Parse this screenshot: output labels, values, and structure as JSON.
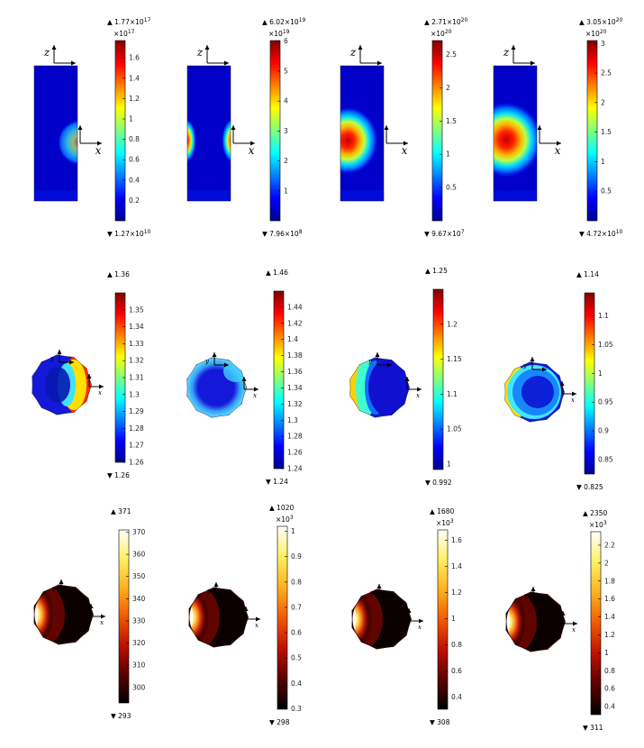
{
  "colormaps": {
    "jet": [
      "#00008f",
      "#0000ff",
      "#0080ff",
      "#00ffff",
      "#80ff80",
      "#ffff00",
      "#ff8000",
      "#ff0000",
      "#800000"
    ],
    "heat": [
      "#000000",
      "#5a0000",
      "#c01000",
      "#f05a00",
      "#ffb020",
      "#fff060",
      "#ffffff"
    ]
  },
  "panels": [
    {
      "id": "r1c1",
      "shape": "rect",
      "cmap": "jet",
      "axes": [
        "z",
        "x"
      ],
      "max": {
        "mantissa": "1.77",
        "exp": "17"
      },
      "min": {
        "mantissa": "1.27",
        "exp": "10"
      },
      "scale_exp": "17",
      "ticks": [
        "1.6",
        "1.4",
        "1.2",
        "1",
        "0.8",
        "0.6",
        "0.4",
        "0.2"
      ]
    },
    {
      "id": "r1c2",
      "shape": "rect",
      "cmap": "jet",
      "axes": [
        "z",
        "x"
      ],
      "max": {
        "mantissa": "6.02",
        "exp": "19"
      },
      "min": {
        "mantissa": "7.96",
        "exp": "8"
      },
      "scale_exp": "19",
      "ticks": [
        "6",
        "5",
        "4",
        "3",
        "2",
        "1"
      ]
    },
    {
      "id": "r1c3",
      "shape": "rect",
      "cmap": "jet",
      "axes": [
        "z",
        "x"
      ],
      "max": {
        "mantissa": "2.71",
        "exp": "20"
      },
      "min": {
        "mantissa": "9.67",
        "exp": "7"
      },
      "scale_exp": "20",
      "ticks": [
        "2.5",
        "2",
        "1.5",
        "1",
        "0.5"
      ]
    },
    {
      "id": "r1c4",
      "shape": "rect",
      "cmap": "jet",
      "axes": [
        "z",
        "x"
      ],
      "max": {
        "mantissa": "3.05",
        "exp": "20"
      },
      "min": {
        "mantissa": "4.72",
        "exp": "10"
      },
      "scale_exp": "20",
      "ticks": [
        "3",
        "2.5",
        "2",
        "1.5",
        "1",
        "0.5"
      ]
    },
    {
      "id": "r2c1",
      "shape": "disk",
      "cmap": "jet",
      "axes": [
        "y",
        "x"
      ],
      "max": {
        "mantissa": "1.36"
      },
      "min": {
        "mantissa": "1.26"
      },
      "ticks": [
        "1.35",
        "1.34",
        "1.33",
        "1.32",
        "1.31",
        "1.3",
        "1.29",
        "1.28",
        "1.27",
        "1.26"
      ]
    },
    {
      "id": "r2c2",
      "shape": "disk",
      "cmap": "jet",
      "axes": [
        "y",
        "x"
      ],
      "max": {
        "mantissa": "1.46"
      },
      "min": {
        "mantissa": "1.24"
      },
      "ticks": [
        "1.44",
        "1.42",
        "1.4",
        "1.38",
        "1.36",
        "1.34",
        "1.32",
        "1.3",
        "1.28",
        "1.26",
        "1.24"
      ]
    },
    {
      "id": "r2c3",
      "shape": "disk",
      "cmap": "jet",
      "axes": [
        "y",
        "x"
      ],
      "max": {
        "mantissa": "1.25"
      },
      "min": {
        "mantissa": "0.992"
      },
      "ticks": [
        "1.2",
        "1.15",
        "1.1",
        "1.05",
        "1"
      ]
    },
    {
      "id": "r2c4",
      "shape": "disk",
      "cmap": "jet",
      "axes": [
        "y",
        "x"
      ],
      "max": {
        "mantissa": "1.14"
      },
      "min": {
        "mantissa": "0.825"
      },
      "ticks": [
        "1.1",
        "1.05",
        "1",
        "0.95",
        "0.9",
        "0.85"
      ]
    },
    {
      "id": "r3c1",
      "shape": "disk",
      "cmap": "heat",
      "axes": [
        "y",
        "x"
      ],
      "max": {
        "mantissa": "371"
      },
      "min": {
        "mantissa": "293"
      },
      "ticks": [
        "370",
        "360",
        "350",
        "340",
        "330",
        "320",
        "310",
        "300"
      ]
    },
    {
      "id": "r3c2",
      "shape": "disk",
      "cmap": "heat",
      "axes": [
        "y",
        "x"
      ],
      "max": {
        "mantissa": "1020"
      },
      "min": {
        "mantissa": "298"
      },
      "scale_exp": "3",
      "ticks": [
        "1",
        "0.9",
        "0.8",
        "0.7",
        "0.6",
        "0.5",
        "0.4",
        "0.3"
      ]
    },
    {
      "id": "r3c3",
      "shape": "disk",
      "cmap": "heat",
      "axes": [
        "y",
        "x"
      ],
      "max": {
        "mantissa": "1680"
      },
      "min": {
        "mantissa": "308"
      },
      "scale_exp": "3",
      "ticks": [
        "1.6",
        "1.4",
        "1.2",
        "1",
        "0.8",
        "0.6",
        "0.4"
      ]
    },
    {
      "id": "r3c4",
      "shape": "disk",
      "cmap": "heat",
      "axes": [
        "y",
        "x"
      ],
      "max": {
        "mantissa": "2350"
      },
      "min": {
        "mantissa": "311"
      },
      "scale_exp": "3",
      "ticks": [
        "2.2",
        "2",
        "1.8",
        "1.6",
        "1.4",
        "1.2",
        "1",
        "0.8",
        "0.6",
        "0.4"
      ]
    }
  ]
}
